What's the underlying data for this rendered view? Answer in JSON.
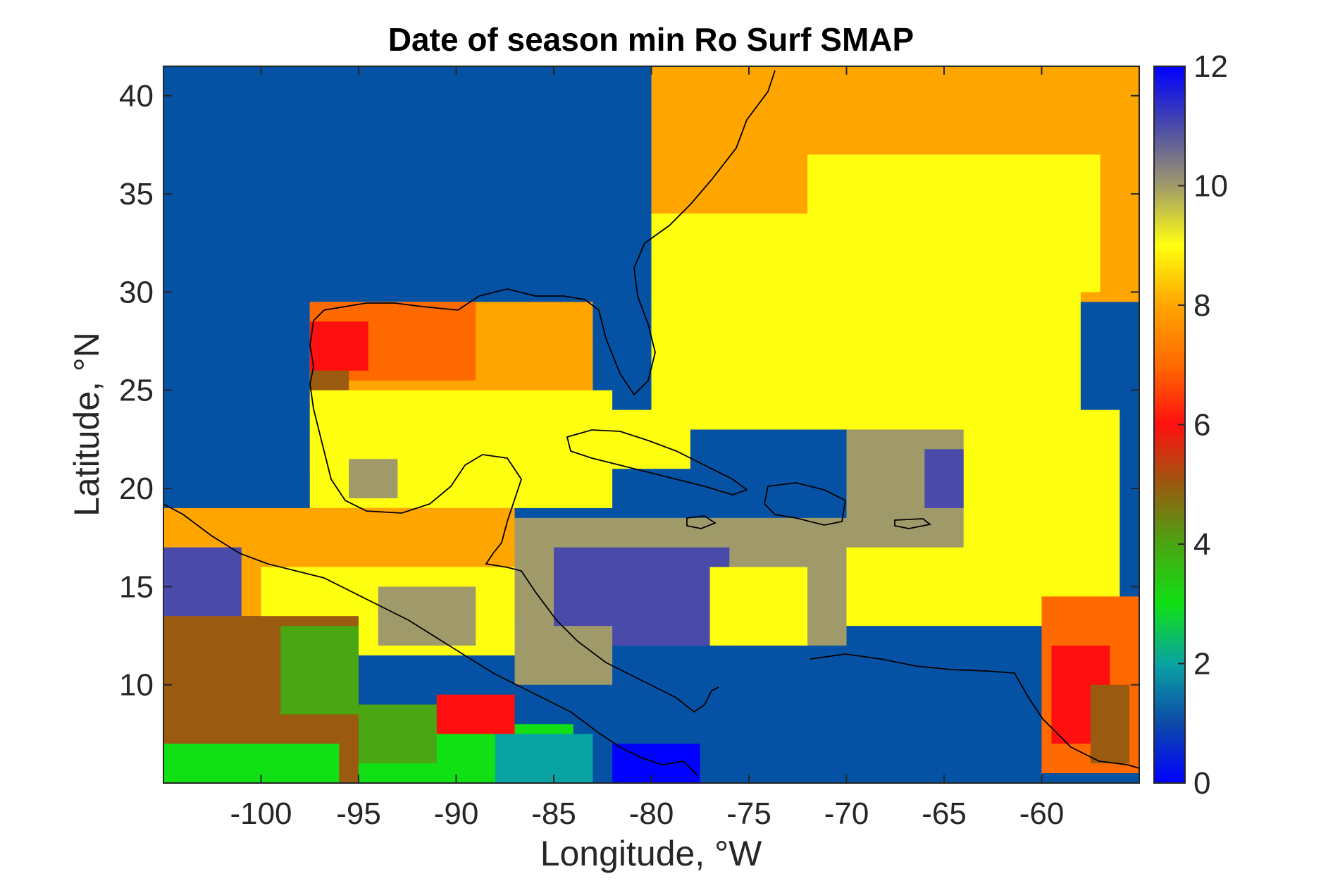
{
  "chart_data": {
    "type": "heatmap",
    "title": "Date of season min Ro Surf SMAP",
    "xlabel": "Longitude, °W",
    "ylabel": "Latitude, °N",
    "xlim": [
      -105,
      -55
    ],
    "ylim": [
      5,
      41.5
    ],
    "x_ticks": [
      -100,
      -95,
      -90,
      -85,
      -80,
      -75,
      -70,
      -65,
      -60
    ],
    "y_ticks": [
      10,
      15,
      20,
      25,
      30,
      35,
      40
    ],
    "x_tick_labels": [
      "-100",
      "-95",
      "-90",
      "-85",
      "-80",
      "-75",
      "-70",
      "-65",
      "-60"
    ],
    "y_tick_labels": [
      "10",
      "15",
      "20",
      "25",
      "30",
      "35",
      "40"
    ],
    "colorbar": {
      "min": 0,
      "max": 12,
      "ticks": [
        0,
        2,
        4,
        6,
        8,
        10,
        12
      ],
      "tick_labels": [
        "0",
        "2",
        "4",
        "6",
        "8",
        "10",
        "12"
      ],
      "colors": [
        {
          "value": 0,
          "color": "#0000ff"
        },
        {
          "value": 1,
          "color": "#0d4aa8"
        },
        {
          "value": 2,
          "color": "#0aa3a3"
        },
        {
          "value": 3,
          "color": "#10e014"
        },
        {
          "value": 4,
          "color": "#4aa613"
        },
        {
          "value": 5,
          "color": "#9a5a10"
        },
        {
          "value": 6,
          "color": "#ff1010"
        },
        {
          "value": 7,
          "color": "#ff6a00"
        },
        {
          "value": 8,
          "color": "#ffa500"
        },
        {
          "value": 9,
          "color": "#ffff10"
        },
        {
          "value": 10,
          "color": "#a09a6a"
        },
        {
          "value": 11,
          "color": "#4a4aaa"
        },
        {
          "value": 12,
          "color": "#0000ff"
        }
      ]
    },
    "land_color": "#0552a5",
    "regions": [
      {
        "value": 8,
        "lon": [
          -80,
          -55
        ],
        "lat": [
          29.5,
          41.5
        ]
      },
      {
        "value": 9,
        "lon": [
          -80,
          -58
        ],
        "lat": [
          23,
          34
        ]
      },
      {
        "value": 9,
        "lon": [
          -72,
          -57
        ],
        "lat": [
          30,
          37
        ]
      },
      {
        "value": 9,
        "lon": [
          -70,
          -56
        ],
        "lat": [
          13,
          24
        ]
      },
      {
        "value": 10,
        "lon": [
          -70,
          -64
        ],
        "lat": [
          17,
          23
        ]
      },
      {
        "value": 11,
        "lon": [
          -66,
          -64
        ],
        "lat": [
          19,
          22
        ]
      },
      {
        "value": 7,
        "lon": [
          -60,
          -55
        ],
        "lat": [
          5.5,
          14.5
        ]
      },
      {
        "value": 6,
        "lon": [
          -59.5,
          -56.5
        ],
        "lat": [
          7,
          12
        ]
      },
      {
        "value": 5,
        "lon": [
          -57.5,
          -55.5
        ],
        "lat": [
          6,
          10
        ]
      },
      {
        "value": 8,
        "lon": [
          -97.5,
          -83
        ],
        "lat": [
          21,
          29.5
        ]
      },
      {
        "value": 7,
        "lon": [
          -97.5,
          -89
        ],
        "lat": [
          25.5,
          29.5
        ]
      },
      {
        "value": 6,
        "lon": [
          -97.5,
          -94.5
        ],
        "lat": [
          26,
          28.5
        ]
      },
      {
        "value": 5,
        "lon": [
          -97.5,
          -95.5
        ],
        "lat": [
          24.5,
          26
        ]
      },
      {
        "value": 9,
        "lon": [
          -97.5,
          -82
        ],
        "lat": [
          19,
          25
        ]
      },
      {
        "value": 10,
        "lon": [
          -95.5,
          -93
        ],
        "lat": [
          19.5,
          21.5
        ]
      },
      {
        "value": 9,
        "lon": [
          -87.5,
          -78
        ],
        "lat": [
          21,
          24
        ]
      },
      {
        "value": 10,
        "lon": [
          -87,
          -70
        ],
        "lat": [
          12,
          18.5
        ]
      },
      {
        "value": 11,
        "lon": [
          -85,
          -76
        ],
        "lat": [
          12,
          17
        ]
      },
      {
        "value": 9,
        "lon": [
          -77,
          -72
        ],
        "lat": [
          12,
          16
        ]
      },
      {
        "value": 10,
        "lon": [
          -87,
          -82
        ],
        "lat": [
          10,
          13
        ]
      },
      {
        "value": 8,
        "lon": [
          -105,
          -87
        ],
        "lat": [
          13.5,
          19
        ]
      },
      {
        "value": 9,
        "lon": [
          -100,
          -87
        ],
        "lat": [
          11.5,
          16
        ]
      },
      {
        "value": 11,
        "lon": [
          -105,
          -101
        ],
        "lat": [
          13.5,
          17
        ]
      },
      {
        "value": 10,
        "lon": [
          -94,
          -89
        ],
        "lat": [
          12,
          15
        ]
      },
      {
        "value": 5,
        "lon": [
          -105,
          -95
        ],
        "lat": [
          5,
          13.5
        ]
      },
      {
        "value": 4,
        "lon": [
          -99,
          -95
        ],
        "lat": [
          8.5,
          13
        ]
      },
      {
        "value": 3,
        "lon": [
          -105,
          -96
        ],
        "lat": [
          5,
          7
        ]
      },
      {
        "value": 3,
        "lon": [
          -95,
          -84
        ],
        "lat": [
          5,
          8
        ]
      },
      {
        "value": 4,
        "lon": [
          -95,
          -91
        ],
        "lat": [
          6,
          9
        ]
      },
      {
        "value": 6,
        "lon": [
          -91,
          -87
        ],
        "lat": [
          7.5,
          9.5
        ]
      },
      {
        "value": 2,
        "lon": [
          -88,
          -83
        ],
        "lat": [
          5,
          7.5
        ]
      },
      {
        "value": 0,
        "lon": [
          -82,
          -77.5
        ],
        "lat": [
          5,
          7
        ]
      }
    ]
  }
}
